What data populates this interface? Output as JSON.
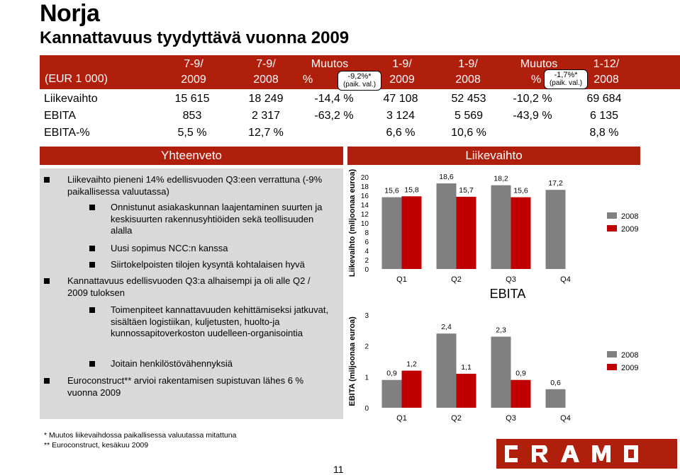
{
  "title": "Norja",
  "subtitle": "Kannattavuus tyydyttävä vuonna 2009",
  "table": {
    "currency_label": "(EUR 1 000)",
    "headers": [
      {
        "l1": "7-9/",
        "l2": "2009"
      },
      {
        "l1": "7-9/",
        "l2": "2008"
      },
      {
        "l1": "Muutos",
        "l2": "%"
      },
      {
        "l1": "1-9/",
        "l2": "2009"
      },
      {
        "l1": "1-9/",
        "l2": "2008"
      },
      {
        "l1": "Muutos",
        "l2": "%"
      },
      {
        "l1": "1-12/",
        "l2": "2008"
      }
    ],
    "callout1": {
      "value": "-9,2%*",
      "note": "(paik. val.)"
    },
    "callout2": {
      "value": "-1,7%*",
      "note": "(paik. val.)"
    },
    "rows": [
      {
        "label": "Liikevaihto",
        "values": [
          "15 615",
          "18 249",
          "-14,4 %",
          "47 108",
          "52 453",
          "-10,2 %",
          "69 684"
        ]
      },
      {
        "label": "EBITA",
        "values": [
          "853",
          "2 317",
          "-63,2 %",
          "3 124",
          "5 569",
          "-43,9 %",
          "6 135"
        ]
      },
      {
        "label": "EBITA-%",
        "values": [
          "5,5 %",
          "12,7 %",
          "",
          "6,6 %",
          "10,6 %",
          "",
          "8,8 %"
        ]
      }
    ]
  },
  "sections": {
    "summary_title": "Yhteenveto",
    "revenue_title": "Liikevaihto"
  },
  "summary": {
    "b1": "Liikevaihto pieneni 14% edellisvuoden Q3:een verrattuna (-9% paikallisessa valuutassa)",
    "b1_1": "Onnistunut asiakaskunnan laajentaminen suurten ja keskisuurten rakennusyhtiöiden sekä teollisuuden alalla",
    "b1_2": "Uusi sopimus NCC:n kanssa",
    "b1_3": "Siirtokelpoisten tilojen kysyntä kohtalaisen hyvä",
    "b2": "Kannattavuus edellisvuoden Q3:a alhaisempi ja oli  alle Q2 / 2009 tuloksen",
    "b2_1": "Toimenpiteet kannattavuuden kehittämiseksi jatkuvat, sisältäen logistiikan, kuljetusten, huolto-ja  kunnossapitoverkoston uudelleen-organisointia",
    "b2_2": "Joitain henkilöstövähennyksiä",
    "b3": "Euroconstruct** arvioi rakentamisen supistuvan lähes 6 % vuonna 2009"
  },
  "chart_data": [
    {
      "type": "bar",
      "title": "",
      "ylabel": "Liikevaihto (miljoonaa euroa)",
      "categories": [
        "Q1",
        "Q2",
        "Q3",
        "Q4"
      ],
      "ylim": [
        0,
        20
      ],
      "yticks": [
        "0",
        "2",
        "4",
        "6",
        "8",
        "10",
        "12",
        "14",
        "16",
        "18",
        "20"
      ],
      "series": [
        {
          "name": "2008",
          "color": "#808080",
          "values": [
            15.6,
            18.6,
            18.2,
            17.2
          ],
          "labels": [
            "15,6",
            "18,6",
            "18,2",
            "17,2"
          ]
        },
        {
          "name": "2009",
          "color": "#c00000",
          "values": [
            15.8,
            15.7,
            15.6,
            null
          ],
          "labels": [
            "15,8",
            "15,7",
            "15,6",
            ""
          ]
        }
      ]
    },
    {
      "type": "bar",
      "title": "EBITA",
      "ylabel": "EBITA (miljoonaa euroa)",
      "categories": [
        "Q1",
        "Q2",
        "Q3",
        "Q4"
      ],
      "ylim": [
        0,
        3
      ],
      "yticks": [
        "0",
        "1",
        "2",
        "3"
      ],
      "series": [
        {
          "name": "2008",
          "color": "#808080",
          "values": [
            0.9,
            2.4,
            2.3,
            0.6
          ],
          "labels": [
            "0,9",
            "2,4",
            "2,3",
            "0,6"
          ]
        },
        {
          "name": "2009",
          "color": "#c00000",
          "values": [
            1.2,
            1.1,
            0.9,
            null
          ],
          "labels": [
            "1,2",
            "1,1",
            "0,9",
            ""
          ]
        }
      ]
    }
  ],
  "footnotes": {
    "f1": "* Muutos liikevaihdossa paikallisessa valuutassa mitattuna",
    "f2": "** Euroconstruct, kesäkuu 2009"
  },
  "page_number": "11",
  "logo_text": "CRAMO"
}
